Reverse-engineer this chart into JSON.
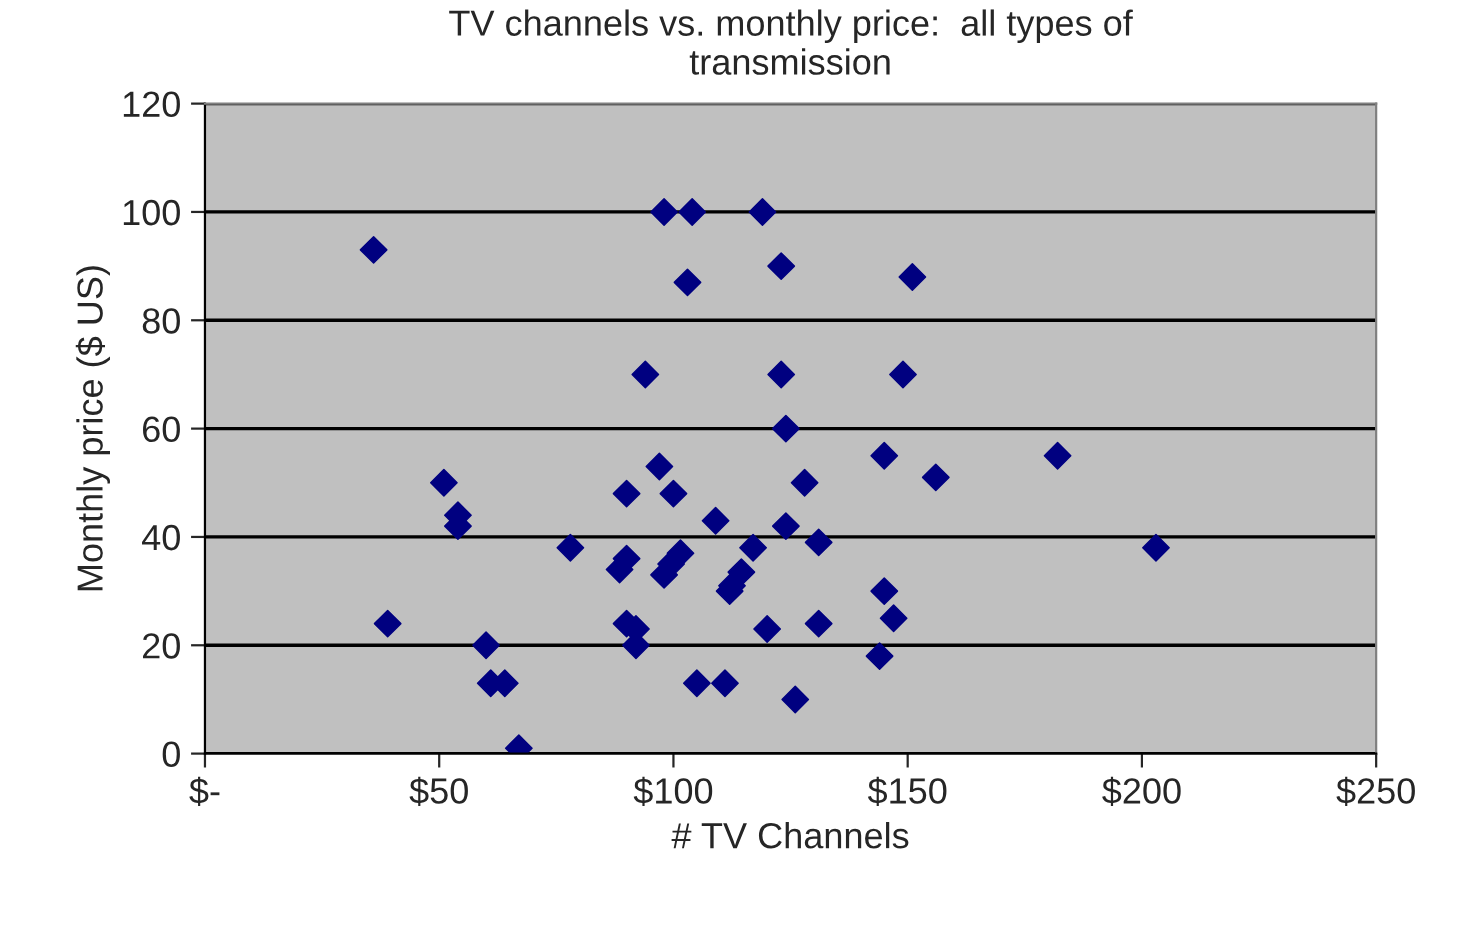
{
  "chart_data": {
    "type": "scatter",
    "title": "TV channels vs. monthly price:  all types of transmission",
    "xlabel": "# TV Channels",
    "ylabel": "Monthly price ($ US)",
    "x": [
      36,
      39,
      51,
      54,
      54,
      60,
      61,
      64,
      67,
      78,
      90,
      88.5,
      90,
      90,
      92,
      92,
      94,
      97,
      98,
      104,
      100,
      98,
      99.5,
      101.5,
      103,
      109,
      105,
      111,
      112,
      112.5,
      114.5,
      117,
      119,
      120,
      123,
      151,
      123,
      149,
      124,
      145,
      182,
      156,
      128,
      124,
      131,
      203,
      145,
      147,
      131,
      144,
      126
    ],
    "values": [
      93,
      24,
      50,
      44,
      42,
      20,
      13,
      13,
      1,
      38,
      48,
      34,
      36,
      24,
      23,
      20,
      70,
      53,
      100,
      100,
      48,
      33,
      35,
      37,
      87,
      43,
      13,
      13,
      30,
      31,
      33.5,
      38,
      100,
      23,
      90,
      88,
      70,
      70,
      60,
      55,
      55,
      51,
      50,
      42,
      39,
      38,
      30,
      25,
      24,
      18,
      10
    ],
    "color": "#000080",
    "marker": "diamond",
    "xlim": [
      0,
      250
    ],
    "xticks": [
      {
        "value": 0,
        "label": "$-"
      },
      {
        "value": 50,
        "label": "$50"
      },
      {
        "value": 100,
        "label": "$100"
      },
      {
        "value": 150,
        "label": "$150"
      },
      {
        "value": 200,
        "label": "$200"
      },
      {
        "value": 250,
        "label": "$250"
      }
    ],
    "ylim": [
      0,
      120
    ],
    "yticks": [
      0,
      20,
      40,
      60,
      80,
      100,
      120
    ],
    "grid": "y"
  }
}
